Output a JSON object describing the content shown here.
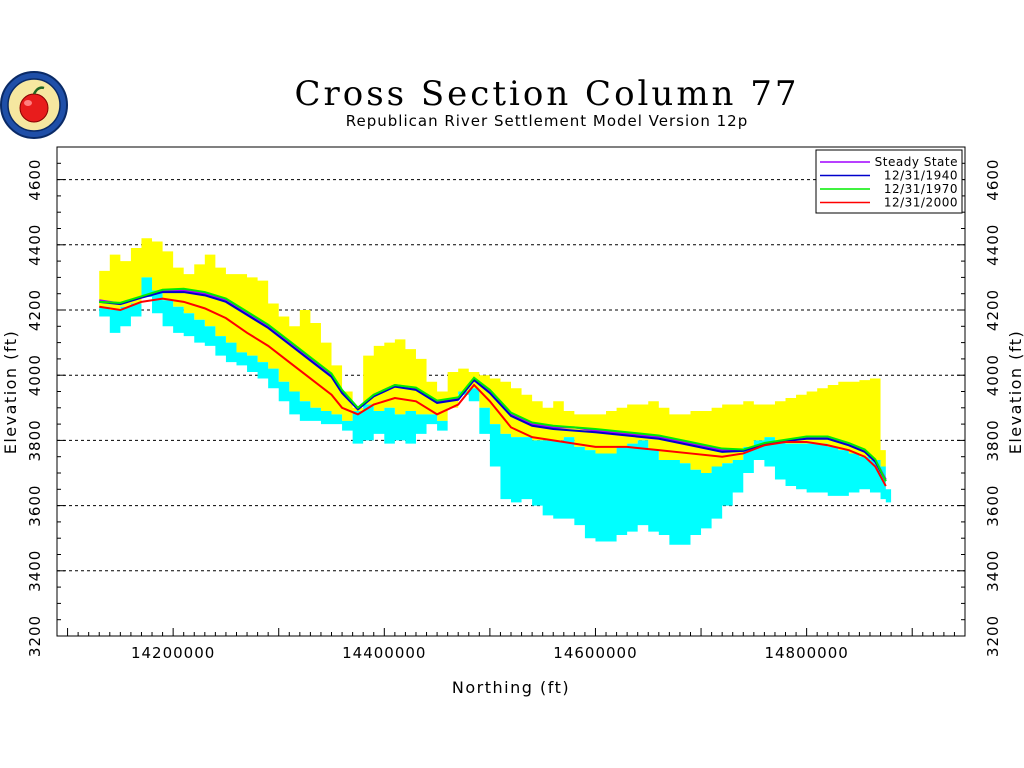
{
  "chart_data": {
    "type": "area",
    "title": "Cross Section Column 77",
    "subtitle": "Republican River Settlement Model Version 12p",
    "xlabel": "Northing (ft)",
    "ylabel": "Elevation (ft)",
    "xlim": [
      14090000,
      14950000
    ],
    "ylim": [
      3200,
      4700
    ],
    "x_ticks": [
      14200000,
      14400000,
      14600000,
      14800000
    ],
    "x_tick_labels": [
      "14200000",
      "14400000",
      "14600000",
      "14800000"
    ],
    "y_ticks": [
      3200,
      3400,
      3600,
      3800,
      4000,
      4200,
      4400,
      4600
    ],
    "y_tick_labels": [
      "3200",
      "3400",
      "3600",
      "3800",
      "4000",
      "4200",
      "4400",
      "4600"
    ],
    "grid": "horizontal dashed",
    "legend_position": "top-right",
    "colors": {
      "top_layer": "#ffff00",
      "bottom_layer": "#00ffff",
      "steady_state": "#a000ff",
      "y1940": "#0000cc",
      "y1970": "#00ee00",
      "y2000": "#ff0000"
    },
    "layers": [
      {
        "x": [
          14130000,
          14140000,
          14150000,
          14160000,
          14170000,
          14180000,
          14190000,
          14200000,
          14210000,
          14220000,
          14230000,
          14240000,
          14250000,
          14260000,
          14270000,
          14280000,
          14290000,
          14300000,
          14310000,
          14320000,
          14330000,
          14340000,
          14350000,
          14360000,
          14370000,
          14380000,
          14390000,
          14400000,
          14410000,
          14420000,
          14430000,
          14440000,
          14450000,
          14460000,
          14470000,
          14480000,
          14490000,
          14500000,
          14510000,
          14520000,
          14530000,
          14540000,
          14550000,
          14560000,
          14570000,
          14580000,
          14590000,
          14600000,
          14610000,
          14620000,
          14630000,
          14640000,
          14650000,
          14660000,
          14670000,
          14680000,
          14690000,
          14700000,
          14710000,
          14720000,
          14730000,
          14740000,
          14750000,
          14760000,
          14770000,
          14780000,
          14790000,
          14800000,
          14810000,
          14820000,
          14830000,
          14840000,
          14850000,
          14860000,
          14870000,
          14875000
        ],
        "top": [
          4320,
          4370,
          4350,
          4390,
          4420,
          4410,
          4380,
          4330,
          4310,
          4340,
          4370,
          4330,
          4310,
          4310,
          4300,
          4290,
          4220,
          4180,
          4150,
          4200,
          4160,
          4100,
          4030,
          3950,
          3900,
          4060,
          4090,
          4100,
          4110,
          4080,
          4050,
          3980,
          3950,
          4010,
          4020,
          4010,
          4000,
          3990,
          3980,
          3960,
          3940,
          3920,
          3900,
          3920,
          3890,
          3880,
          3880,
          3880,
          3890,
          3900,
          3910,
          3910,
          3920,
          3900,
          3880,
          3880,
          3890,
          3890,
          3900,
          3910,
          3910,
          3920,
          3910,
          3910,
          3920,
          3930,
          3940,
          3950,
          3960,
          3970,
          3980,
          3980,
          3985,
          3990,
          3770,
          3650
        ],
        "mid": [
          4210,
          4200,
          4210,
          4220,
          4300,
          4260,
          4230,
          4210,
          4190,
          4170,
          4150,
          4120,
          4100,
          4070,
          4060,
          4040,
          4020,
          3980,
          3950,
          3920,
          3900,
          3890,
          3880,
          3860,
          3890,
          3910,
          3890,
          3900,
          3880,
          3890,
          3880,
          3880,
          3860,
          3900,
          3950,
          3960,
          3900,
          3850,
          3820,
          3810,
          3810,
          3800,
          3800,
          3800,
          3810,
          3780,
          3770,
          3760,
          3760,
          3780,
          3790,
          3800,
          3770,
          3740,
          3740,
          3730,
          3710,
          3700,
          3720,
          3730,
          3740,
          3780,
          3800,
          3810,
          3800,
          3790,
          3790,
          3790,
          3790,
          3780,
          3770,
          3760,
          3750,
          3740,
          3720,
          3650
        ],
        "bottom": [
          4180,
          4130,
          4150,
          4180,
          4240,
          4190,
          4150,
          4130,
          4120,
          4100,
          4090,
          4060,
          4040,
          4030,
          4010,
          3990,
          3960,
          3920,
          3880,
          3860,
          3860,
          3850,
          3850,
          3830,
          3790,
          3800,
          3820,
          3790,
          3800,
          3790,
          3820,
          3850,
          3830,
          3900,
          3940,
          3920,
          3820,
          3720,
          3620,
          3610,
          3620,
          3600,
          3570,
          3560,
          3560,
          3540,
          3500,
          3490,
          3490,
          3510,
          3520,
          3540,
          3520,
          3510,
          3480,
          3480,
          3510,
          3530,
          3560,
          3600,
          3640,
          3700,
          3740,
          3720,
          3680,
          3660,
          3650,
          3640,
          3640,
          3630,
          3630,
          3640,
          3650,
          3640,
          3620,
          3610
        ]
      }
    ],
    "series": [
      {
        "name": "Steady State",
        "x": [
          14130000,
          14150000,
          14170000,
          14190000,
          14210000,
          14230000,
          14250000,
          14270000,
          14290000,
          14310000,
          14330000,
          14350000,
          14360000,
          14375000,
          14390000,
          14410000,
          14430000,
          14450000,
          14470000,
          14485000,
          14500000,
          14520000,
          14540000,
          14560000,
          14580000,
          14600000,
          14630000,
          14660000,
          14690000,
          14720000,
          14740000,
          14760000,
          14780000,
          14800000,
          14820000,
          14840000,
          14855000,
          14865000,
          14875000
        ],
        "y": [
          4230,
          4220,
          4240,
          4260,
          4260,
          4250,
          4230,
          4190,
          4150,
          4100,
          4050,
          4000,
          3950,
          3900,
          3940,
          3970,
          3960,
          3920,
          3930,
          3990,
          3950,
          3880,
          3850,
          3840,
          3840,
          3830,
          3820,
          3810,
          3790,
          3770,
          3770,
          3790,
          3800,
          3810,
          3810,
          3790,
          3770,
          3740,
          3680
        ]
      },
      {
        "name": "12/31/1940",
        "x": [
          14130000,
          14150000,
          14170000,
          14190000,
          14210000,
          14230000,
          14250000,
          14270000,
          14290000,
          14310000,
          14330000,
          14350000,
          14360000,
          14375000,
          14390000,
          14410000,
          14430000,
          14450000,
          14470000,
          14485000,
          14500000,
          14520000,
          14540000,
          14560000,
          14580000,
          14600000,
          14630000,
          14660000,
          14690000,
          14720000,
          14740000,
          14760000,
          14780000,
          14800000,
          14820000,
          14840000,
          14855000,
          14865000,
          14875000
        ],
        "y": [
          4225,
          4218,
          4238,
          4255,
          4255,
          4245,
          4225,
          4185,
          4145,
          4095,
          4045,
          3995,
          3945,
          3895,
          3935,
          3965,
          3955,
          3915,
          3925,
          3985,
          3945,
          3875,
          3845,
          3835,
          3830,
          3825,
          3815,
          3805,
          3785,
          3765,
          3768,
          3788,
          3798,
          3805,
          3805,
          3785,
          3765,
          3735,
          3675
        ]
      },
      {
        "name": "12/31/1970",
        "x": [
          14130000,
          14150000,
          14170000,
          14190000,
          14210000,
          14230000,
          14250000,
          14270000,
          14290000,
          14310000,
          14330000,
          14350000,
          14360000,
          14375000,
          14390000,
          14410000,
          14430000,
          14450000,
          14470000,
          14485000,
          14500000,
          14520000,
          14540000,
          14560000,
          14580000,
          14600000,
          14630000,
          14660000,
          14690000,
          14720000,
          14740000,
          14760000,
          14780000,
          14800000,
          14820000,
          14840000,
          14855000,
          14865000,
          14875000
        ],
        "y": [
          4225,
          4222,
          4242,
          4262,
          4265,
          4255,
          4235,
          4195,
          4155,
          4105,
          4055,
          4005,
          3955,
          3900,
          3940,
          3970,
          3962,
          3922,
          3932,
          3992,
          3955,
          3885,
          3855,
          3845,
          3840,
          3835,
          3825,
          3815,
          3795,
          3775,
          3772,
          3792,
          3802,
          3812,
          3812,
          3792,
          3772,
          3742,
          3675
        ]
      },
      {
        "name": "12/31/2000",
        "x": [
          14130000,
          14150000,
          14170000,
          14190000,
          14210000,
          14230000,
          14250000,
          14270000,
          14290000,
          14310000,
          14330000,
          14350000,
          14360000,
          14375000,
          14390000,
          14410000,
          14430000,
          14450000,
          14470000,
          14485000,
          14500000,
          14520000,
          14540000,
          14560000,
          14580000,
          14600000,
          14630000,
          14660000,
          14690000,
          14720000,
          14740000,
          14760000,
          14780000,
          14800000,
          14820000,
          14840000,
          14855000,
          14865000,
          14875000
        ],
        "y": [
          4210,
          4200,
          4225,
          4235,
          4225,
          4205,
          4175,
          4130,
          4090,
          4040,
          3990,
          3940,
          3900,
          3880,
          3910,
          3930,
          3920,
          3880,
          3910,
          3970,
          3920,
          3840,
          3810,
          3800,
          3790,
          3780,
          3780,
          3770,
          3760,
          3750,
          3760,
          3785,
          3795,
          3795,
          3785,
          3770,
          3750,
          3720,
          3660
        ]
      }
    ]
  }
}
